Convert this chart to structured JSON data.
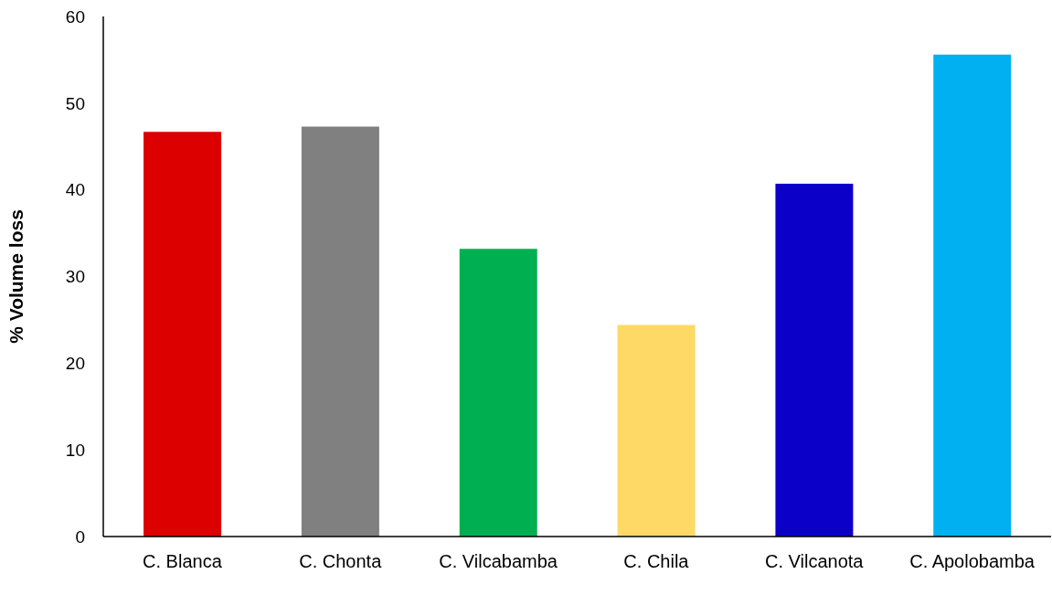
{
  "chart_data": {
    "type": "bar",
    "ylabel": "% Volume loss",
    "categories": [
      "C. Blanca",
      "C. Chonta",
      "C. Vilcabamba",
      "C. Chila",
      "C. Vilcanota",
      "C. Apolobamba"
    ],
    "values": [
      46.7,
      47.3,
      33.2,
      24.4,
      40.7,
      55.6
    ],
    "colors": [
      "#dc0000",
      "#808080",
      "#00b050",
      "#ffd966",
      "#0a00c8",
      "#00b0f0"
    ],
    "ylim": [
      0,
      60
    ],
    "yticks": [
      0,
      10,
      20,
      30,
      40,
      50,
      60
    ],
    "grid": false,
    "legend": false
  }
}
